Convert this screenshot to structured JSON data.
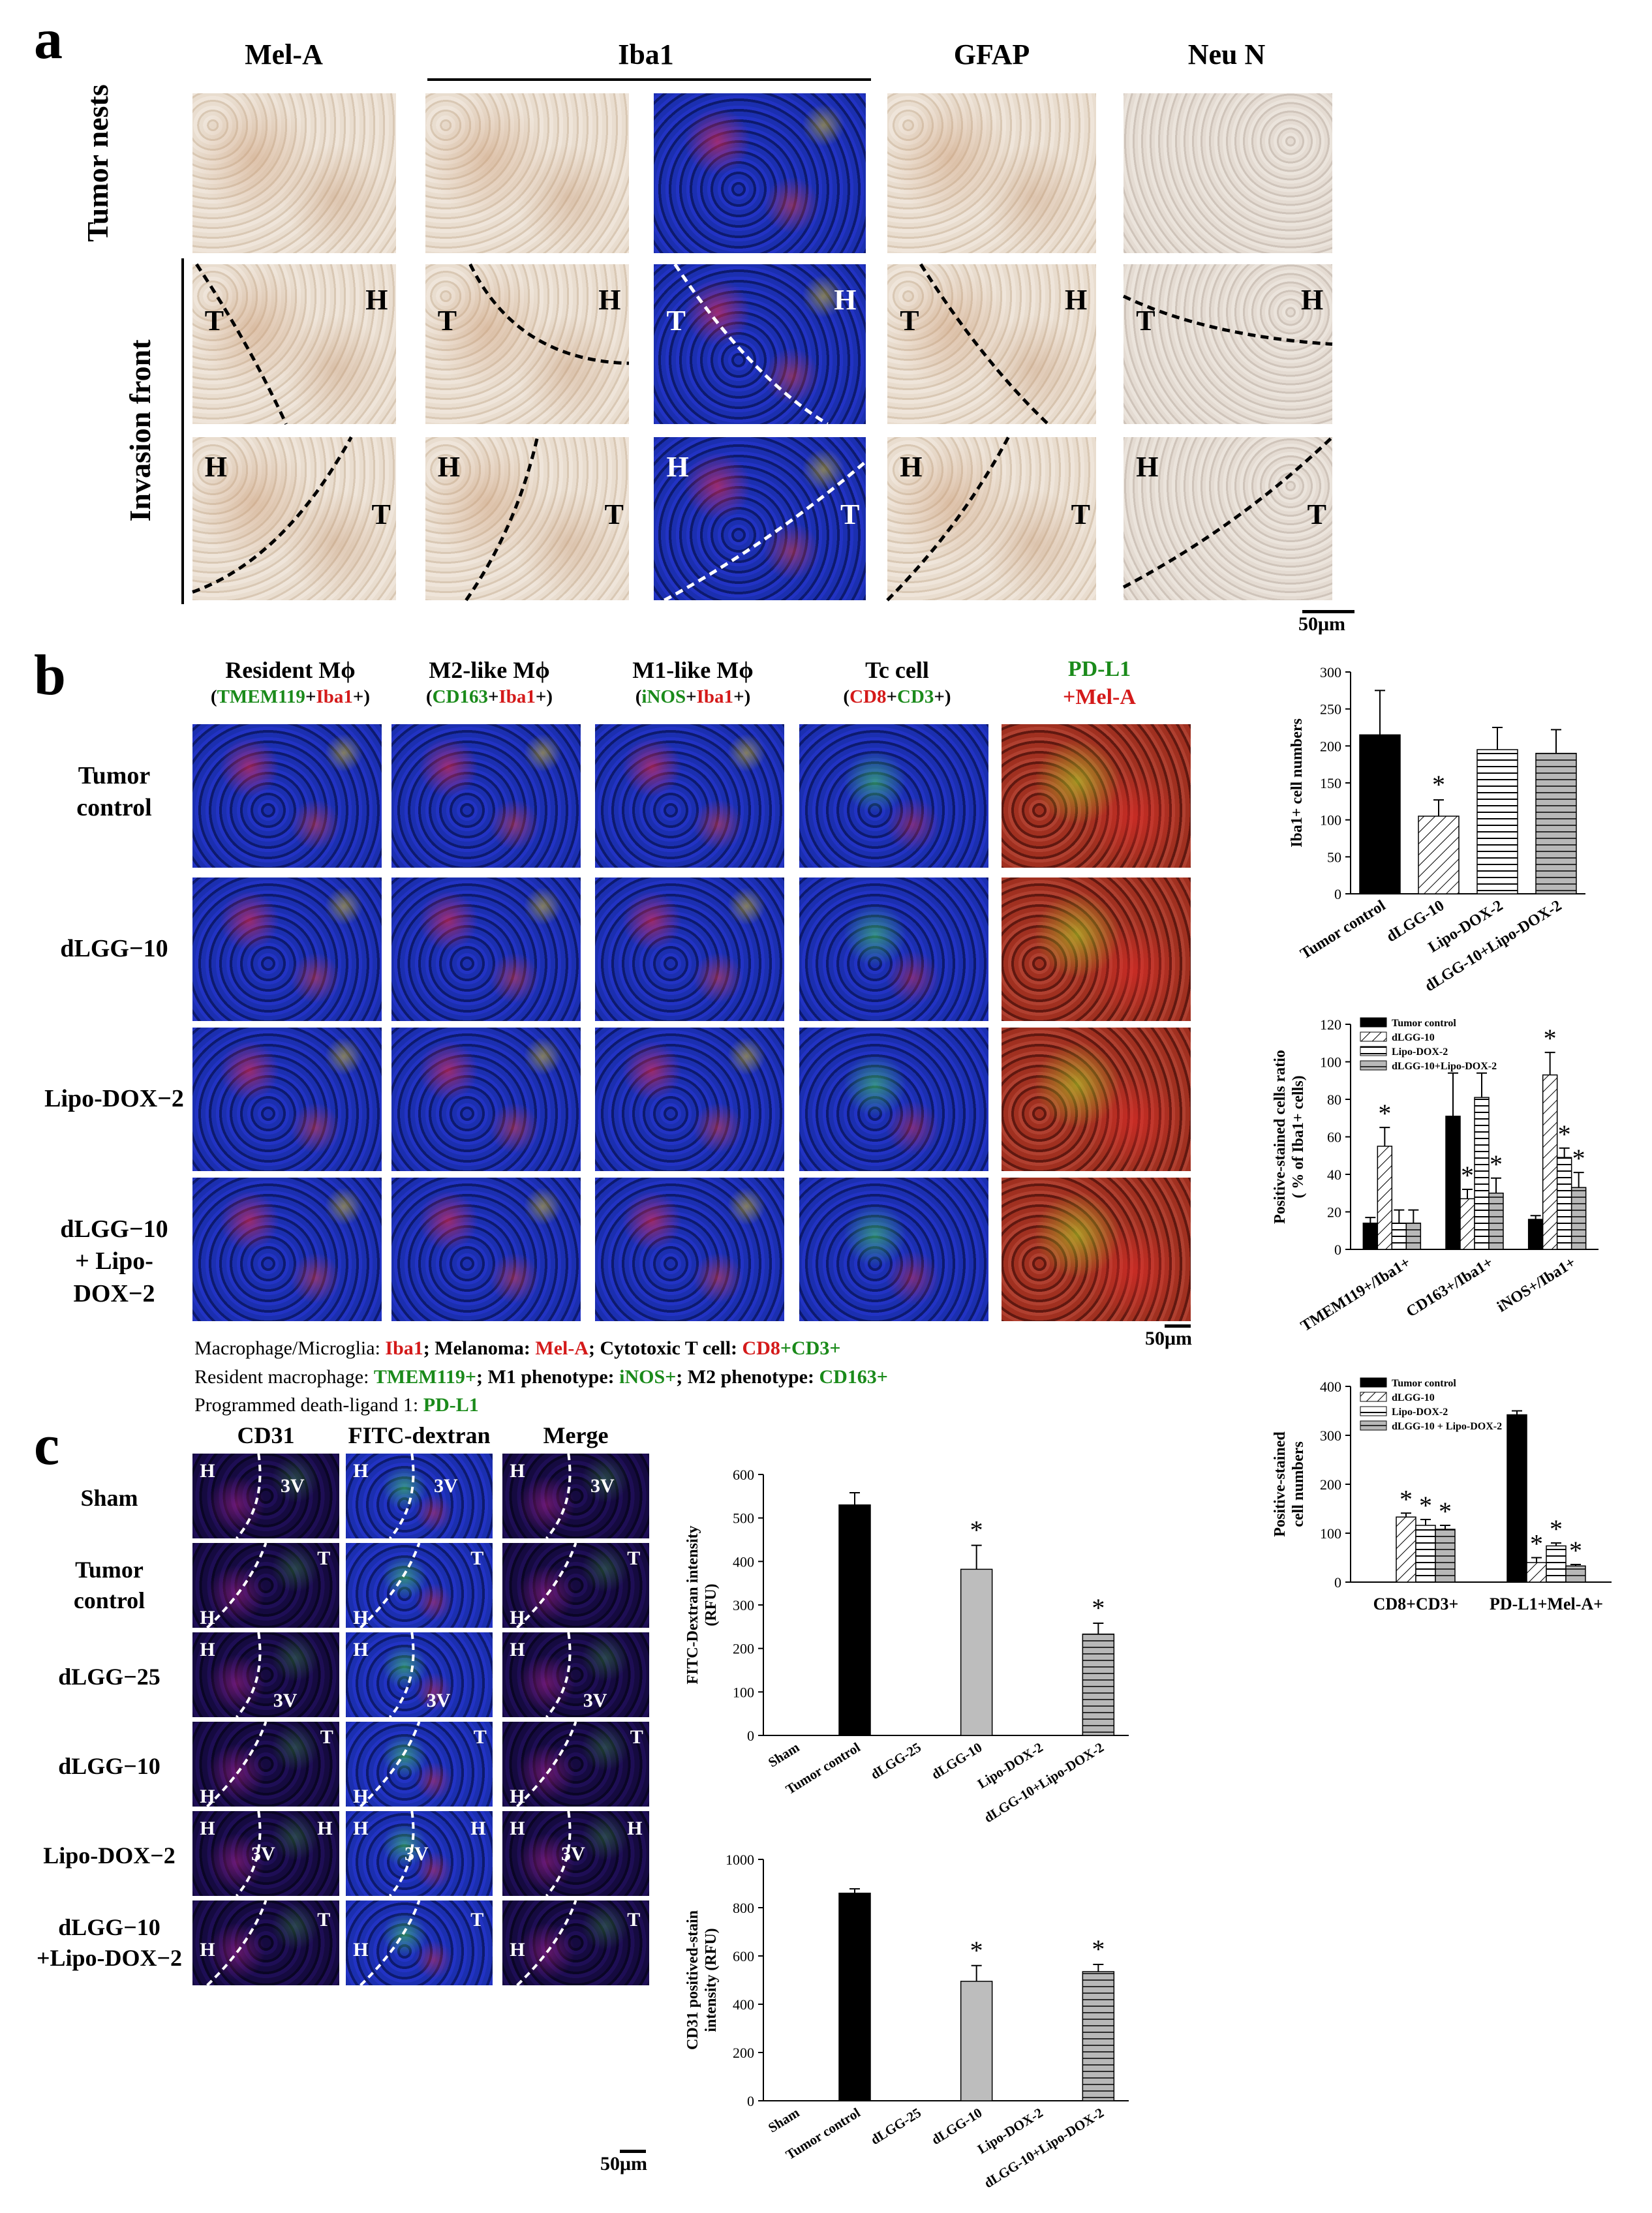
{
  "panel_a": {
    "letter": "a",
    "col_headers": [
      "Mel-A",
      "Iba1",
      "GFAP",
      "Neu N"
    ],
    "row_labels": [
      "Tumor nests",
      "Invasion front"
    ],
    "region_labels": {
      "tumor": "T",
      "host": "H"
    },
    "scale_bar": "50μm"
  },
  "panel_b": {
    "letter": "b",
    "col_headers": [
      {
        "main": "Resident Mϕ",
        "sub_open": "(",
        "sub_a": "TMEM119",
        "sub_plus": "+",
        "sub_b": "Iba1",
        "sub_close": "+)"
      },
      {
        "main": "M2-like Mϕ",
        "sub_open": "(",
        "sub_a": "CD163",
        "sub_plus": "+",
        "sub_b": "Iba1",
        "sub_close": "+)"
      },
      {
        "main": "M1-like Mϕ",
        "sub_open": "(",
        "sub_a": "iNOS",
        "sub_plus": "+",
        "sub_b": "Iba1",
        "sub_close": "+)"
      },
      {
        "main": "Tc cell",
        "sub_open": "(",
        "sub_a": "CD8",
        "sub_plus": "+",
        "sub_b": "CD3",
        "sub_close": "+)"
      },
      {
        "main_a": "PD-L1",
        "main_b": "+Mel-A"
      }
    ],
    "row_labels": [
      "Tumor\ncontrol",
      "dLGG−10",
      "Lipo-DOX−2",
      "dLGG−10\n+ Lipo-DOX−2"
    ],
    "scale_bar": "50μm",
    "legend": {
      "l1_a": "Macrophage/Microglia: ",
      "l1_b": "Iba1",
      "l1_c": "; Melanoma: ",
      "l1_d": "Mel-A",
      "l1_e": "; Cytotoxic T cell: ",
      "l1_f": "CD8",
      "l1_g": "+",
      "l1_h": "CD3+",
      "l2_a": "Resident macrophage: ",
      "l2_b": "TMEM119+",
      "l2_c": "; M1 phenotype: ",
      "l2_d": "iNOS+",
      "l2_e": "; M2 phenotype: ",
      "l2_f": "CD163+",
      "l3_a": "Programmed death-ligand 1: ",
      "l3_b": "PD-L1"
    }
  },
  "panel_c": {
    "letter": "c",
    "col_headers": [
      "CD31",
      "FITC-dextran",
      "Merge"
    ],
    "row_labels": [
      "Sham",
      "Tumor\ncontrol",
      "dLGG−25",
      "dLGG−10",
      "Lipo-DOX−2",
      "dLGG−10\n+Lipo-DOX−2"
    ],
    "region_labels": {
      "host": "H",
      "tumor": "T",
      "ventricle": "3V"
    },
    "scale_bar": "50μm"
  },
  "colors": {
    "black_bar": "#000000",
    "gray_bar": "#bdbdbd",
    "red_text": "#d41a1a",
    "green_text": "#1a8a1a"
  },
  "chart_data": [
    {
      "id": "iba1-count",
      "type": "bar",
      "ylabel": "Iba1+ cell numbers",
      "ylim": [
        0,
        300
      ],
      "yticks": [
        0,
        50,
        100,
        150,
        200,
        250,
        300
      ],
      "categories": [
        "Tumor control",
        "dLGG-10",
        "Lipo-DOX-2",
        "dLGG-10+Lipo-DOX-2"
      ],
      "values": [
        215,
        105,
        195,
        190
      ],
      "errors": [
        60,
        22,
        30,
        32
      ],
      "significant": [
        false,
        true,
        false,
        false
      ],
      "fills": [
        "black",
        "diagonal",
        "horizontal",
        "gray-horizontal"
      ]
    },
    {
      "id": "macrophage-ratio",
      "type": "bar",
      "ylabel": "Positive-stained cells ratio\n( % of Iba1+ cells)",
      "ylim": [
        0,
        120
      ],
      "yticks": [
        0,
        20,
        40,
        60,
        80,
        100,
        120
      ],
      "categories": [
        "TMEM119+/Iba1+",
        "CD163+/Iba1+",
        "iNOS+/Iba1+"
      ],
      "legend_position": "top-left",
      "series": [
        {
          "name": "Tumor control",
          "values": [
            14,
            71,
            16
          ],
          "errors": [
            3,
            23,
            2
          ],
          "significant": [
            false,
            false,
            false
          ],
          "fill": "black"
        },
        {
          "name": "dLGG-10",
          "values": [
            55,
            27,
            93
          ],
          "errors": [
            10,
            5,
            12
          ],
          "significant": [
            true,
            true,
            true
          ],
          "fill": "diagonal"
        },
        {
          "name": "Lipo-DOX-2",
          "values": [
            14,
            81,
            49
          ],
          "errors": [
            7,
            13,
            5
          ],
          "significant": [
            false,
            false,
            true
          ],
          "fill": "horizontal"
        },
        {
          "name": "dLGG-10+Lipo-DOX-2",
          "values": [
            14,
            30,
            33
          ],
          "errors": [
            7,
            8,
            8
          ],
          "significant": [
            false,
            true,
            true
          ],
          "fill": "gray-horizontal"
        }
      ]
    },
    {
      "id": "positive-stained-counts",
      "type": "bar",
      "ylabel": "Positive-stained\ncell numbers",
      "ylim": [
        0,
        400
      ],
      "yticks": [
        0,
        100,
        200,
        300,
        400
      ],
      "categories": [
        "CD8+CD3+",
        "PD-L1+Mel-A+"
      ],
      "legend_position": "top-left",
      "series": [
        {
          "name": "Tumor control",
          "values": [
            0,
            342
          ],
          "errors": [
            0,
            8
          ],
          "significant": [
            false,
            false
          ],
          "fill": "black"
        },
        {
          "name": "dLGG-10",
          "values": [
            133,
            40
          ],
          "errors": [
            8,
            10
          ],
          "significant": [
            true,
            true
          ],
          "fill": "diagonal"
        },
        {
          "name": "Lipo-DOX-2",
          "values": [
            116,
            74
          ],
          "errors": [
            12,
            6
          ],
          "significant": [
            true,
            true
          ],
          "fill": "horizontal"
        },
        {
          "name": "dLGG-10 + Lipo-DOX-2",
          "values": [
            108,
            33
          ],
          "errors": [
            8,
            3
          ],
          "significant": [
            true,
            true
          ],
          "fill": "gray-horizontal"
        }
      ]
    },
    {
      "id": "fitc-dextran",
      "type": "bar",
      "ylabel": "FITC-Dextran intensity\n(RFU)",
      "ylim": [
        0,
        600
      ],
      "yticks": [
        0,
        100,
        200,
        300,
        400,
        500,
        600
      ],
      "categories": [
        "Sham",
        "Tumor control",
        "dLGG-25",
        "dLGG-10",
        "Lipo-DOX-2",
        "dLGG-10+Lipo-DOX-2"
      ],
      "values": [
        0,
        530,
        0,
        382,
        0,
        233
      ],
      "errors": [
        0,
        28,
        0,
        55,
        0,
        25
      ],
      "significant": [
        false,
        false,
        false,
        true,
        false,
        true
      ],
      "fills": [
        "none",
        "black",
        "none",
        "gray",
        "none",
        "gray-horizontal"
      ]
    },
    {
      "id": "cd31-intensity",
      "type": "bar",
      "ylabel": "CD31 positived-stain\nintensity (RFU)",
      "ylim": [
        0,
        1000
      ],
      "yticks": [
        0,
        200,
        400,
        600,
        800,
        1000
      ],
      "categories": [
        "Sham",
        "Tumor control",
        "dLGG-25",
        "dLGG-10",
        "Lipo-DOX-2",
        "dLGG-10+Lipo-DOX-2"
      ],
      "values": [
        0,
        860,
        0,
        495,
        0,
        535
      ],
      "errors": [
        0,
        18,
        0,
        65,
        0,
        30
      ],
      "significant": [
        false,
        false,
        false,
        true,
        false,
        true
      ],
      "fills": [
        "none",
        "black",
        "none",
        "gray",
        "none",
        "gray-horizontal"
      ]
    }
  ]
}
